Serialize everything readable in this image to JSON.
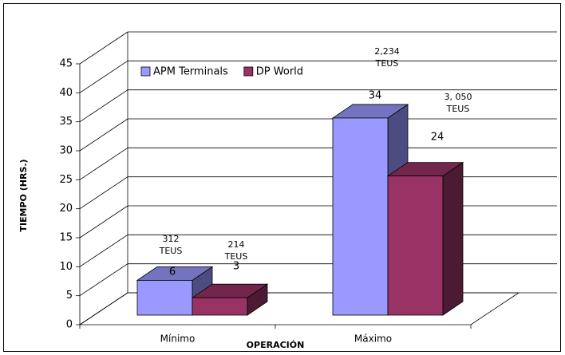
{
  "chart_data": {
    "type": "bar3d",
    "categories": [
      "Mínimo",
      "Máximo"
    ],
    "series": [
      {
        "name": "APM Terminals",
        "color": "#9999ff",
        "values": [
          6,
          34
        ]
      },
      {
        "name": "DP World",
        "color": "#993366",
        "values": [
          3,
          24
        ]
      }
    ],
    "ylim": [
      0,
      45
    ],
    "yticks": [
      0,
      5,
      10,
      15,
      20,
      25,
      30,
      35,
      40,
      45
    ],
    "xlabel": "OPERACIÓN",
    "ylabel": "TIEMPO (HRS.)",
    "annotations": [
      [
        "312",
        "TEUS"
      ],
      [
        "214",
        "TEUS"
      ],
      [
        "2,234",
        "TEUS"
      ],
      [
        "3, 050",
        "TEUS"
      ]
    ],
    "grid": true,
    "legend": "top-left"
  }
}
